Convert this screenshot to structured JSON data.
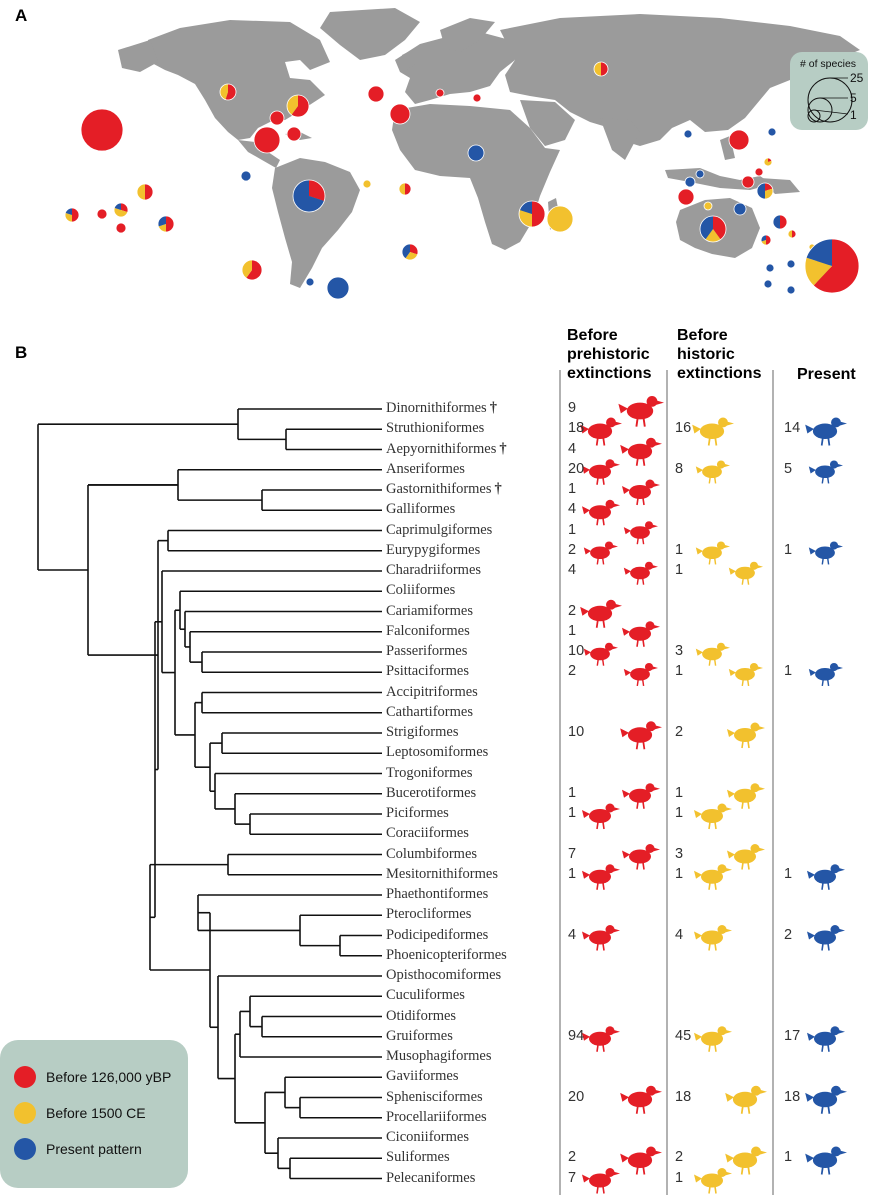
{
  "panel_a": {
    "label": "A",
    "size_key": {
      "title": "# of species",
      "values": [
        "25",
        "5",
        "1"
      ]
    },
    "colors": {
      "prehistoric": "#e41e26",
      "historic": "#f2c12e",
      "present": "#2456a6",
      "land": "#9b9b9b"
    }
  },
  "panel_b": {
    "label": "B",
    "columns": [
      {
        "id": "prehistoric",
        "title_lines": [
          "Before",
          "prehistoric",
          "extinctions"
        ]
      },
      {
        "id": "historic",
        "title_lines": [
          "Before",
          "historic",
          "extinctions"
        ]
      },
      {
        "id": "present",
        "title_lines": [
          "Present"
        ]
      }
    ],
    "orders": [
      {
        "name": "Dinornithiformes",
        "extinct": true,
        "prehistoric": "9",
        "historic": "",
        "present": ""
      },
      {
        "name": "Struthioniformes",
        "extinct": false,
        "prehistoric": "18",
        "historic": "16",
        "present": "14"
      },
      {
        "name": "Aepyornithiformes",
        "extinct": true,
        "prehistoric": "4",
        "historic": "",
        "present": ""
      },
      {
        "name": "Anseriformes",
        "extinct": false,
        "prehistoric": "20",
        "historic": "8",
        "present": "5"
      },
      {
        "name": "Gastornithiformes",
        "extinct": true,
        "prehistoric": "1",
        "historic": "",
        "present": ""
      },
      {
        "name": "Galliformes",
        "extinct": false,
        "prehistoric": "4",
        "historic": "",
        "present": ""
      },
      {
        "name": "Caprimulgiformes",
        "extinct": false,
        "prehistoric": "1",
        "historic": "",
        "present": ""
      },
      {
        "name": "Eurypygiformes",
        "extinct": false,
        "prehistoric": "2",
        "historic": "1",
        "present": "1"
      },
      {
        "name": "Charadriiformes",
        "extinct": false,
        "prehistoric": "4",
        "historic": "1",
        "present": ""
      },
      {
        "name": "Coliiformes",
        "extinct": false,
        "prehistoric": "",
        "historic": "",
        "present": ""
      },
      {
        "name": "Cariamiformes",
        "extinct": false,
        "prehistoric": "2",
        "historic": "",
        "present": ""
      },
      {
        "name": "Falconiformes",
        "extinct": false,
        "prehistoric": "1",
        "historic": "",
        "present": ""
      },
      {
        "name": "Passeriformes",
        "extinct": false,
        "prehistoric": "10",
        "historic": "3",
        "present": ""
      },
      {
        "name": "Psittaciformes",
        "extinct": false,
        "prehistoric": "2",
        "historic": "1",
        "present": "1"
      },
      {
        "name": "Accipitriformes",
        "extinct": false,
        "prehistoric": "",
        "historic": "",
        "present": ""
      },
      {
        "name": "Cathartiformes",
        "extinct": false,
        "prehistoric": "",
        "historic": "",
        "present": ""
      },
      {
        "name": "Strigiformes",
        "extinct": false,
        "prehistoric": "10",
        "historic": "2",
        "present": ""
      },
      {
        "name": "Leptosomiformes",
        "extinct": false,
        "prehistoric": "",
        "historic": "",
        "present": ""
      },
      {
        "name": "Trogoniformes",
        "extinct": false,
        "prehistoric": "",
        "historic": "",
        "present": ""
      },
      {
        "name": "Bucerotiformes",
        "extinct": false,
        "prehistoric": "1",
        "historic": "1",
        "present": ""
      },
      {
        "name": "Piciformes",
        "extinct": false,
        "prehistoric": "1",
        "historic": "1",
        "present": ""
      },
      {
        "name": "Coraciiformes",
        "extinct": false,
        "prehistoric": "",
        "historic": "",
        "present": ""
      },
      {
        "name": "Columbiformes",
        "extinct": false,
        "prehistoric": "7",
        "historic": "3",
        "present": ""
      },
      {
        "name": "Mesitornithiformes",
        "extinct": false,
        "prehistoric": "1",
        "historic": "1",
        "present": "1"
      },
      {
        "name": "Phaethontiformes",
        "extinct": false,
        "prehistoric": "",
        "historic": "",
        "present": ""
      },
      {
        "name": "Pterocliformes",
        "extinct": false,
        "prehistoric": "",
        "historic": "",
        "present": ""
      },
      {
        "name": "Podicipediformes",
        "extinct": false,
        "prehistoric": "4",
        "historic": "4",
        "present": "2"
      },
      {
        "name": "Phoenicopteriformes",
        "extinct": false,
        "prehistoric": "",
        "historic": "",
        "present": ""
      },
      {
        "name": "Opisthocomiformes",
        "extinct": false,
        "prehistoric": "",
        "historic": "",
        "present": ""
      },
      {
        "name": "Cuculiformes",
        "extinct": false,
        "prehistoric": "",
        "historic": "",
        "present": ""
      },
      {
        "name": "Otidiformes",
        "extinct": false,
        "prehistoric": "",
        "historic": "",
        "present": ""
      },
      {
        "name": "Gruiformes",
        "extinct": false,
        "prehistoric": "94",
        "historic": "45",
        "present": "17"
      },
      {
        "name": "Musophagiformes",
        "extinct": false,
        "prehistoric": "",
        "historic": "",
        "present": ""
      },
      {
        "name": "Gaviiformes",
        "extinct": false,
        "prehistoric": "",
        "historic": "",
        "present": ""
      },
      {
        "name": "Sphenisciformes",
        "extinct": false,
        "prehistoric": "20",
        "historic": "18",
        "present": "18"
      },
      {
        "name": "Procellariiformes",
        "extinct": false,
        "prehistoric": "",
        "historic": "",
        "present": ""
      },
      {
        "name": "Ciconiiformes",
        "extinct": false,
        "prehistoric": "",
        "historic": "",
        "present": ""
      },
      {
        "name": "Suliformes",
        "extinct": false,
        "prehistoric": "2",
        "historic": "2",
        "present": "1"
      },
      {
        "name": "Pelecaniformes",
        "extinct": false,
        "prehistoric": "7",
        "historic": "1",
        "present": ""
      }
    ],
    "extinct_marker": "†"
  },
  "legend": {
    "items": [
      {
        "label": "Before 126,000 yBP",
        "color": "#e41e26"
      },
      {
        "label": "Before 1500 CE",
        "color": "#f2c12e"
      },
      {
        "label": "Present pattern",
        "color": "#2456a6"
      }
    ]
  }
}
